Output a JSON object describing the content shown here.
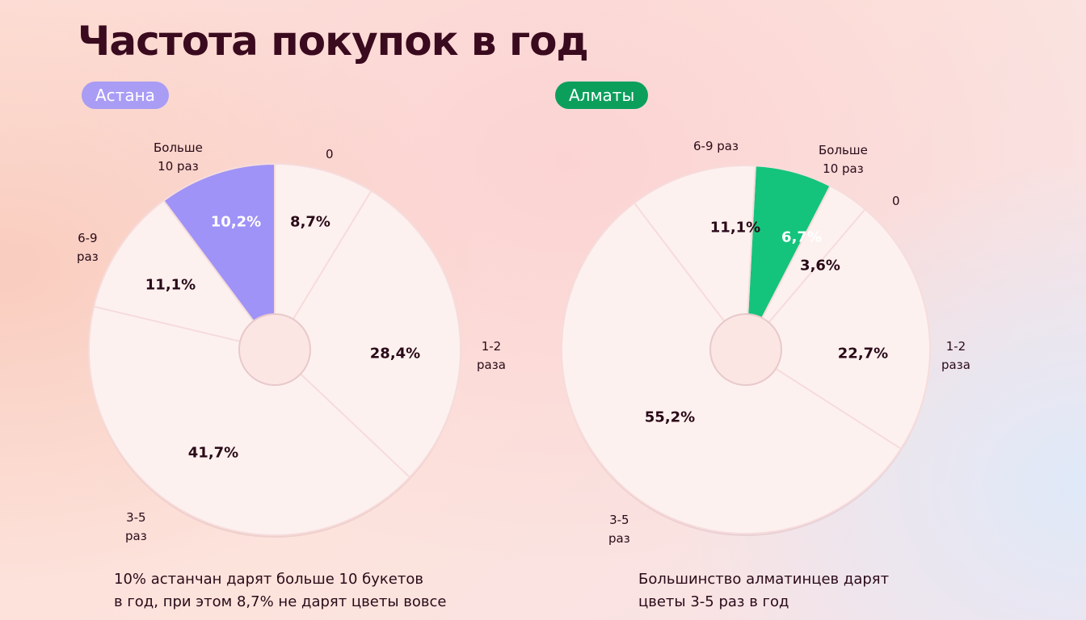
{
  "title": "Частота покупок в год",
  "chart_data": [
    {
      "type": "pie",
      "city": "Астана",
      "accent": "#9f93f7",
      "categories": [
        "0",
        "1-2 раза",
        "3-5 раз",
        "6-9 раз",
        "Больше 10 раз"
      ],
      "values": [
        8.7,
        28.4,
        41.7,
        11.1,
        10.2
      ],
      "value_labels": [
        "8,7%",
        "28,4%",
        "41,7%",
        "11,1%",
        "10,2%"
      ],
      "highlight": "Больше 10 раз",
      "note": [
        "10% астанчан дарят больше 10 букетов",
        "в год, при этом 8,7% не дарят цветы вовсе"
      ]
    },
    {
      "type": "pie",
      "city": "Алматы",
      "accent": "#14c47c",
      "categories": [
        "Больше 10 раз",
        "0",
        "1-2 раза",
        "3-5 раз",
        "6-9 раз"
      ],
      "values": [
        6.7,
        3.6,
        22.7,
        55.2,
        11.1
      ],
      "value_labels": [
        "6,7%",
        "3,6%",
        "22,7%",
        "55,2%",
        "11,1%"
      ],
      "highlight": "Больше 10 раз",
      "note": [
        "Большинство алматинцев дарят",
        "цветы 3-5 раз в год"
      ]
    }
  ],
  "labels": {
    "left": {
      "more10a": "Больше",
      "more10b": "10 раз",
      "zero": "0",
      "r12a": "1-2",
      "r12b": "раза",
      "r35a": "3-5",
      "r35b": "раз",
      "r69a": "6-9",
      "r69b": "раз"
    },
    "right": {
      "r69": "6-9 раз",
      "more10a": "Больше",
      "more10b": "10 раз",
      "zero": "0",
      "r12a": "1-2",
      "r12b": "раза",
      "r35a": "3-5",
      "r35b": "раз"
    }
  },
  "colors": {
    "pill_astana": "#a99cf5",
    "pill_almaty": "#0c9f5c",
    "slice": "#fdf1ef"
  }
}
